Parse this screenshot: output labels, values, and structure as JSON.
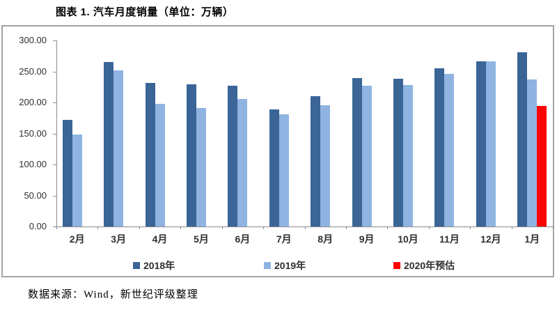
{
  "title": "图表 1. 汽车月度销量（单位：万辆）",
  "source_note": "数据来源：Wind，新世纪评级整理",
  "colors": {
    "series_2018": "#3A6596",
    "series_2019": "#8FB4E2",
    "series_2020_forecast": "#FF0000",
    "axis_line": "#8C8C8C",
    "frame_border": "#A3A3A3",
    "text": "#2F2F2F"
  },
  "chart_data": {
    "type": "bar",
    "title": "图表 1. 汽车月度销量（单位：万辆）",
    "xlabel": "",
    "ylabel": "",
    "ylim": [
      0,
      300
    ],
    "ytick_step": 50,
    "ytick_decimals": 2,
    "grid": false,
    "legend_position": "bottom",
    "categories": [
      "2月",
      "3月",
      "4月",
      "5月",
      "6月",
      "7月",
      "8月",
      "9月",
      "10月",
      "11月",
      "12月",
      "1月"
    ],
    "series": [
      {
        "key": "2018",
        "name": "2018年",
        "color": "#3A6596",
        "values": [
          171.8,
          265.6,
          231.9,
          228.8,
          227.4,
          188.9,
          210.3,
          239.4,
          238.0,
          254.8,
          266.2,
          280.9
        ]
      },
      {
        "key": "2019",
        "name": "2019年",
        "color": "#8FB4E2",
        "values": [
          148.2,
          252.0,
          198.0,
          191.3,
          205.7,
          180.8,
          195.8,
          227.1,
          228.4,
          245.7,
          265.8,
          236.7
        ]
      },
      {
        "key": "2020-forecast",
        "name": "2020年预估",
        "color": "#FF0000",
        "values": [
          null,
          null,
          null,
          null,
          null,
          null,
          null,
          null,
          null,
          null,
          null,
          194.0
        ]
      }
    ]
  }
}
